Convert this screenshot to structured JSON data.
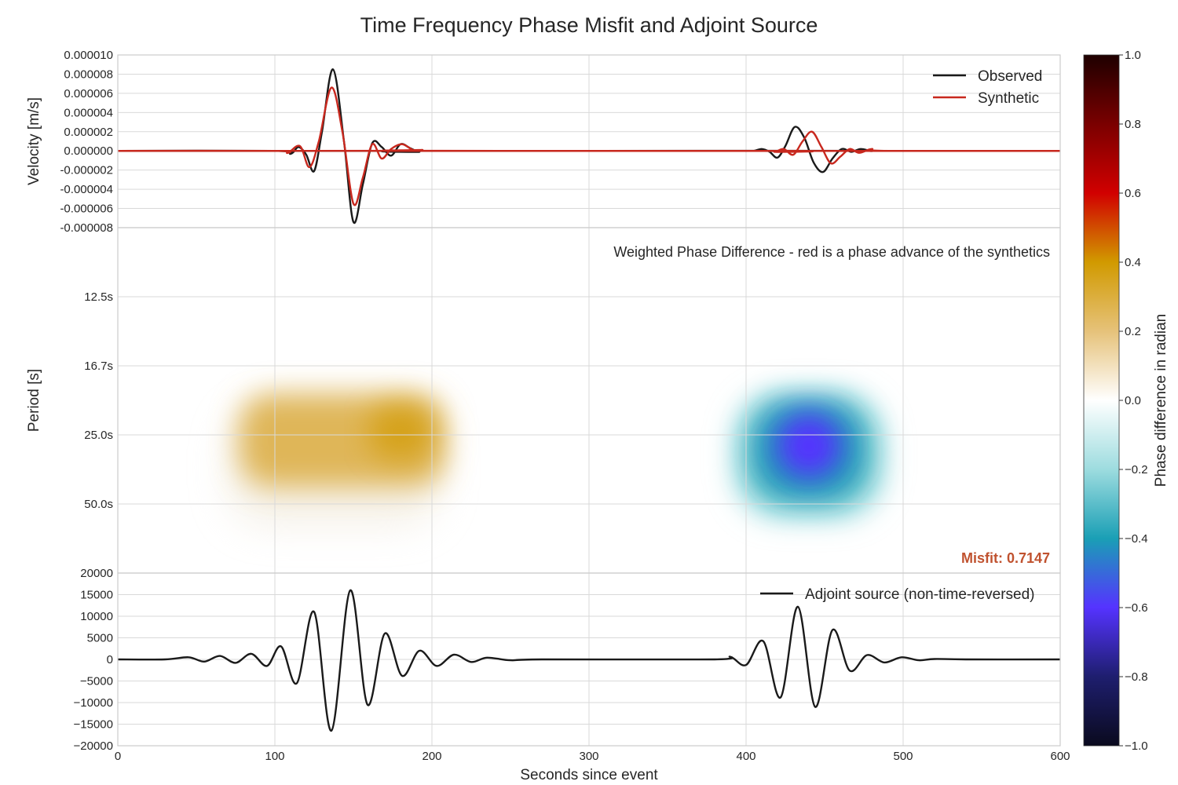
{
  "figure": {
    "title": "Time Frequency Phase Misfit and Adjoint Source"
  },
  "chart_data": [
    {
      "type": "line",
      "panel": "waveforms",
      "ylabel": "Velocity [m/s]",
      "xlim": [
        0,
        600
      ],
      "ylim": [
        -8e-06,
        1e-05
      ],
      "yticks": [
        "0.000010",
        "0.000008",
        "0.000006",
        "0.000004",
        "0.000002",
        "0.000000",
        "-0.000002",
        "-0.000004",
        "-0.000006",
        "-0.000008"
      ],
      "yticks_values": [
        1e-05,
        8e-06,
        6e-06,
        4e-06,
        2e-06,
        0,
        -2e-06,
        -4e-06,
        -6e-06,
        -8e-06
      ],
      "legend_position": "top-right",
      "grid": true,
      "series": [
        {
          "name": "Observed",
          "color": "#1a1a1a",
          "x": [
            0,
            100,
            110,
            115,
            120,
            125,
            130,
            137,
            144,
            150,
            156,
            162,
            168,
            174,
            180,
            186,
            192,
            200,
            600
          ],
          "y": [
            0,
            0,
            -3e-07,
            4e-07,
            -4e-07,
            -2.1e-06,
            2e-06,
            8.5e-06,
            1e-06,
            -7.4e-06,
            -3.5e-06,
            8e-07,
            4e-07,
            -5e-07,
            7e-07,
            3e-07,
            -1e-07,
            0,
            0
          ],
          "segments": [
            {
              "x": [
                0,
                400,
                405,
                410,
                415,
                420,
                425,
                431,
                437,
                443,
                449,
                455,
                461,
                467,
                473,
                480,
                490,
                600
              ],
              "y": [
                0,
                0,
                0,
                2e-07,
                -1e-07,
                -7e-07,
                5e-07,
                2.5e-06,
                1.4e-06,
                -1.2e-06,
                -2.2e-06,
                -8e-07,
                2e-07,
                -1e-07,
                2e-07,
                0,
                0,
                0
              ]
            }
          ]
        },
        {
          "name": "Synthetic",
          "color": "#c8281e",
          "x": [
            0,
            100,
            108,
            116,
            122,
            128,
            136,
            143,
            150,
            156,
            162,
            168,
            174,
            181,
            188,
            194,
            200,
            600
          ],
          "y": [
            0,
            0,
            -2e-07,
            5e-07,
            -1.7e-06,
            1e-06,
            6.6e-06,
            2e-06,
            -5.5e-06,
            -2.8e-06,
            7e-07,
            -8e-07,
            2e-07,
            7e-07,
            1e-07,
            1e-07,
            0,
            0
          ],
          "segments": [
            {
              "x": [
                0,
                410,
                418,
                424,
                430,
                436,
                442,
                448,
                454,
                460,
                466,
                472,
                480,
                490,
                600
              ],
              "y": [
                0,
                0,
                -1e-07,
                2e-07,
                -4e-07,
                1e-06,
                2e-06,
                4e-07,
                -1.3e-06,
                -6e-07,
                2e-07,
                -2e-07,
                2e-07,
                0,
                0
              ]
            }
          ]
        }
      ]
    },
    {
      "type": "heatmap",
      "panel": "phase-difference",
      "ylabel": "Period [s]",
      "annotation": "Weighted Phase Difference - red is a phase advance of the synthetics",
      "misfit_label": "Misfit: 0.7147",
      "yticks": [
        "12.5s",
        "16.7s",
        "25.0s",
        "50.0s"
      ],
      "colorbar": {
        "label": "Phase difference in radian",
        "range": [
          -1.0,
          1.0
        ],
        "ticks": [
          "1.0",
          "0.8",
          "0.6",
          "0.4",
          "0.2",
          "0.0",
          "−0.2",
          "−0.4",
          "−0.6",
          "−0.8",
          "−1.0"
        ],
        "tick_values": [
          1.0,
          0.8,
          0.6,
          0.4,
          0.2,
          0.0,
          -0.2,
          -0.4,
          -0.6,
          -0.8,
          -1.0
        ],
        "colormap_stops": [
          {
            "v": -1.0,
            "color": "#0a0a1e"
          },
          {
            "v": -0.8,
            "color": "#1e1e6e"
          },
          {
            "v": -0.6,
            "color": "#5533ff"
          },
          {
            "v": -0.4,
            "color": "#1a9fb5"
          },
          {
            "v": -0.2,
            "color": "#9ddcdf"
          },
          {
            "v": 0.0,
            "color": "#ffffff"
          },
          {
            "v": 0.2,
            "color": "#e6c27a"
          },
          {
            "v": 0.4,
            "color": "#d19a00"
          },
          {
            "v": 0.6,
            "color": "#d10000"
          },
          {
            "v": 0.8,
            "color": "#7a0000"
          },
          {
            "v": 1.0,
            "color": "#1e0000"
          }
        ]
      },
      "regions": [
        {
          "name": "positive-phase-region",
          "time_range": [
            80,
            210
          ],
          "period": "25.0s",
          "value": 0.3,
          "color": "#d8a840"
        },
        {
          "name": "negative-phase-region",
          "time_range": [
            395,
            475
          ],
          "period": "25.0s",
          "value": -0.6,
          "color": "#5533ff"
        }
      ]
    },
    {
      "type": "line",
      "panel": "adjoint-source",
      "xlabel": "Seconds since event",
      "xlim": [
        0,
        600
      ],
      "ylim": [
        -20000,
        20000
      ],
      "xticks": [
        "0",
        "100",
        "200",
        "300",
        "400",
        "500",
        "600"
      ],
      "xticks_values": [
        0,
        100,
        200,
        300,
        400,
        500,
        600
      ],
      "yticks": [
        "20000",
        "15000",
        "10000",
        "5000",
        "0",
        "−5000",
        "−10000",
        "−15000",
        "−20000"
      ],
      "yticks_values": [
        20000,
        15000,
        10000,
        5000,
        0,
        -5000,
        -10000,
        -15000,
        -20000
      ],
      "legend_position": "top-right",
      "grid": true,
      "series": [
        {
          "name": "Adjoint source (non-time-reversed)",
          "color": "#1a1a1a",
          "x": [
            0,
            30,
            45,
            55,
            65,
            75,
            85,
            95,
            104,
            114,
            125,
            136,
            148,
            159,
            170,
            181,
            192,
            203,
            214,
            225,
            235,
            250,
            270,
            380,
            390,
            400,
            411,
            422,
            433,
            444,
            455,
            466,
            477,
            488,
            499,
            510,
            520,
            540,
            600
          ],
          "y": [
            0,
            0,
            500,
            -500,
            800,
            -800,
            1300,
            -1500,
            3000,
            -5500,
            11000,
            -16500,
            16000,
            -10500,
            6000,
            -3800,
            2000,
            -1500,
            1100,
            -600,
            400,
            -200,
            0,
            0,
            600,
            -1300,
            4200,
            -8800,
            12200,
            -11000,
            6800,
            -2600,
            1000,
            -700,
            500,
            -200,
            100,
            0,
            0
          ]
        }
      ]
    }
  ]
}
